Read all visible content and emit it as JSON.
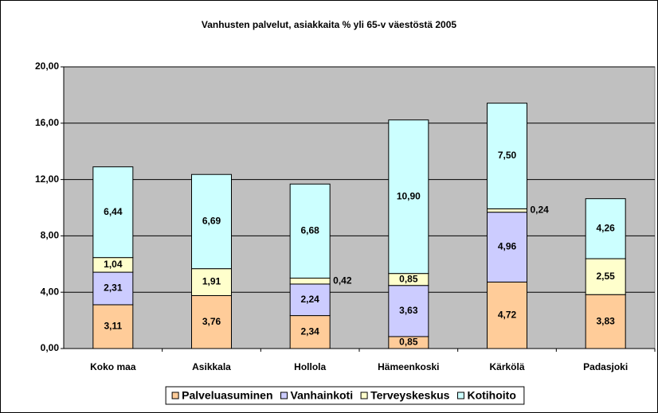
{
  "chart_data": {
    "type": "stacked_bar",
    "title": "Vanhusten palvelut, asiakkaita % yli 65-v väestöstä 2005",
    "categories": [
      "Koko maa",
      "Asikkala",
      "Hollola",
      "Hämeenkoski",
      "Kärkölä",
      "Padasjoki"
    ],
    "series": [
      {
        "name": "Palveluasuminen",
        "color": "#ffcc99",
        "values": [
          3.11,
          3.76,
          2.34,
          0.85,
          4.72,
          3.83
        ],
        "value_labels": [
          "3,11",
          "3,76",
          "2,34",
          "0,85",
          "4,72",
          "3,83"
        ]
      },
      {
        "name": "Vanhainkoti",
        "color": "#ccccff",
        "values": [
          2.31,
          0,
          2.24,
          3.63,
          4.96,
          0
        ],
        "value_labels": [
          "2,31",
          null,
          "2,24",
          "3,63",
          "4,96",
          null
        ]
      },
      {
        "name": "Terveyskeskus",
        "color": "#ffffcc",
        "values": [
          1.04,
          1.91,
          0.42,
          0.85,
          0.24,
          2.55
        ],
        "value_labels": [
          "1,04",
          "1,91",
          "0,42",
          "0,85",
          "0,24",
          "2,55"
        ]
      },
      {
        "name": "Kotihoito",
        "color": "#ccffff",
        "values": [
          6.44,
          6.69,
          6.68,
          10.9,
          7.5,
          4.26
        ],
        "value_labels": [
          "6,44",
          "6,69",
          "6,68",
          "10,90",
          "7,50",
          "4,26"
        ]
      }
    ],
    "ylim": [
      0,
      20
    ],
    "yticks": [
      {
        "value": 0,
        "label": "0,00"
      },
      {
        "value": 4,
        "label": "4,00"
      },
      {
        "value": 8,
        "label": "8,00"
      },
      {
        "value": 12,
        "label": "12,00"
      },
      {
        "value": 16,
        "label": "16,00"
      },
      {
        "value": 20,
        "label": "20,00"
      }
    ],
    "grid": true,
    "legend": "bottom"
  }
}
